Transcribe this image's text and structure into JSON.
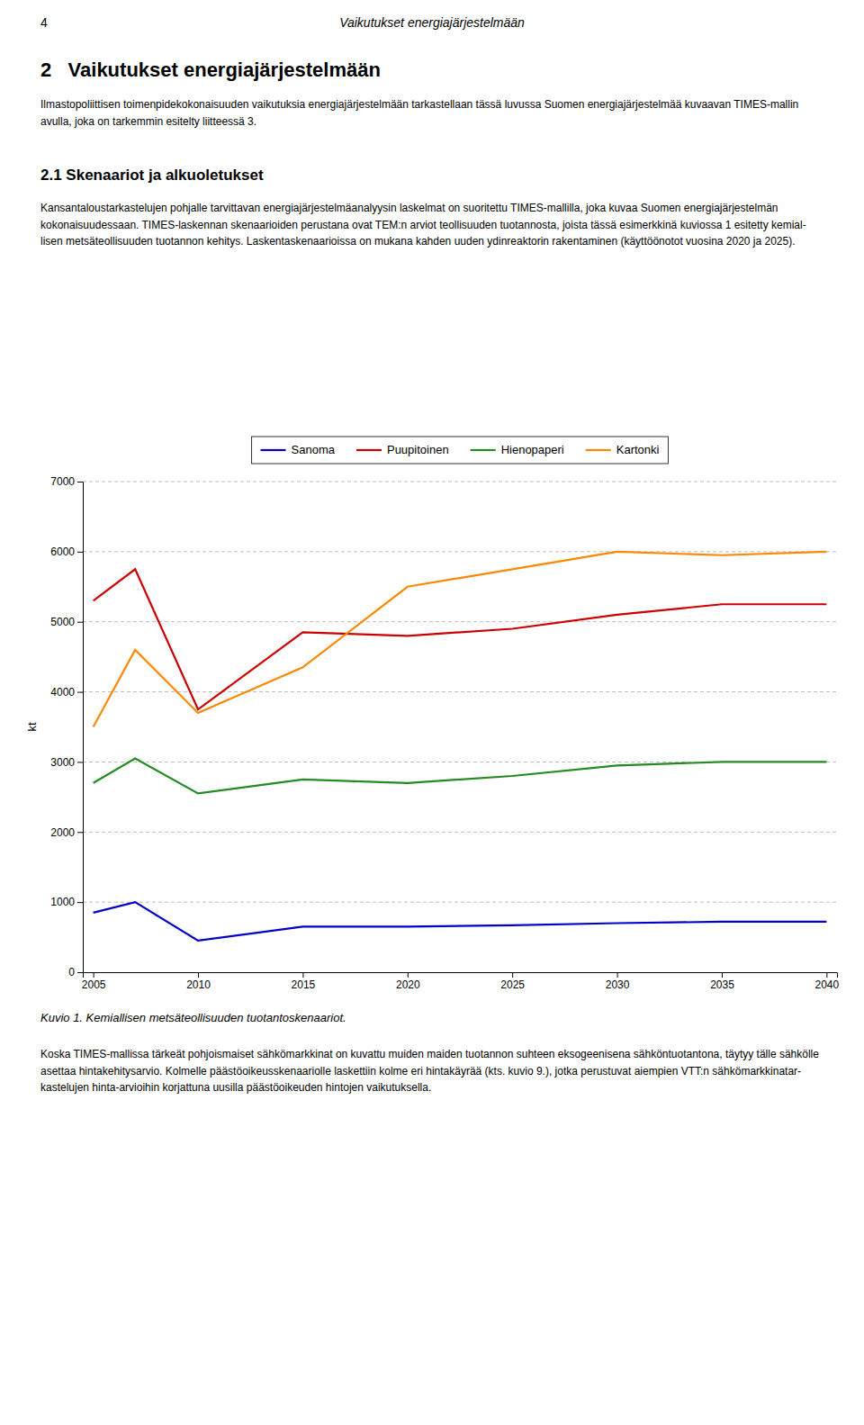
{
  "page_title_num": "4",
  "page_title": "Vaikutukset energiajärjestelmään",
  "section_title": "2   Vaikutukset energiajärjestelmään",
  "subsection_title": "2.1 Skenaariot ja alkuoletukset",
  "paragraphs": [
    [
      "Ilmastopoliittisen toimenpidekokonaisuuden vaikutuksia energiajärjestelmään tarkastellaan tässä luvussa Suomen energiajärjestelmää kuvaavan TIMES-mallin",
      "avulla, joka on tarkemmin esitelty liitteessä 3."
    ],
    [
      "Kansantaloustarkastelujen pohjalle tarvittavan energiajärjestelmäanalyysin laskelmat on suoritettu TIMES-mallilla, joka kuvaa Suomen energiajärjestelmän",
      "kokonaisuudessaan. TIMES-laskennan skenaarioiden perustana ovat TEM:n arviot teollisuuden tuotannosta, joista tässä esimerkkinä kuviossa 1 esitetty kemial-",
      "lisen metsäteollisuuden tuotannon kehitys. Laskentaskenaarioissa on mukana kahden uuden ydinreaktorin rakentaminen (käyttöönotot vuosina 2020 ja 2025)."
    ],
    [
      "Koska TIMES-mallissa tärkeät pohjoismaiset sähkömarkkinat on kuvattu muiden maiden tuotannon suhteen eksogeenisena sähköntuotantona, täytyy tälle sähkölle",
      "asettaa hintakehitysarvio. Kolmelle päästöoikeusskenaariolle laskettiin kolme eri hintakäyrää (kts. kuvio 9.), jotka perustuvat aiempien VTT:n sähkömarkkinatar-",
      "kastelujen hinta-arvioihin korjattuna uusilla päästöoikeuden hintojen vaikutuksella."
    ]
  ],
  "caption": "Kuvio 1. Kemiallisen metsäteollisuuden tuotantoskenaariot.",
  "chart_data": {
    "type": "line",
    "x": [
      2005,
      2007,
      2010,
      2015,
      2020,
      2025,
      2030,
      2035,
      2040
    ],
    "series": [
      {
        "name": "Sanoma",
        "color": "#0000cc",
        "values": [
          850,
          1000,
          450,
          650,
          650,
          670,
          700,
          720,
          720
        ]
      },
      {
        "name": "Puupitoinen",
        "color": "#cc0000",
        "values": [
          5300,
          5750,
          3750,
          4850,
          4800,
          4900,
          5100,
          5250,
          5250
        ]
      },
      {
        "name": "Hienopaperi",
        "color": "#228B22",
        "values": [
          2700,
          3050,
          2550,
          2750,
          2700,
          2800,
          2950,
          3000,
          3000
        ]
      },
      {
        "name": "Kartonki",
        "color": "#ff8800",
        "values": [
          3500,
          4600,
          3700,
          4350,
          5500,
          5750,
          6000,
          5950,
          6000
        ]
      }
    ],
    "ylabel": "kt",
    "xlim": [
      2004.5,
      2040.5
    ],
    "xticks": [
      2005,
      2010,
      2015,
      2020,
      2025,
      2030,
      2035,
      2040
    ],
    "ylim": [
      0,
      7000
    ],
    "yticks": [
      0,
      1000,
      2000,
      3000,
      4000,
      5000,
      6000,
      7000
    ],
    "grid": true,
    "legend": "upper center"
  }
}
